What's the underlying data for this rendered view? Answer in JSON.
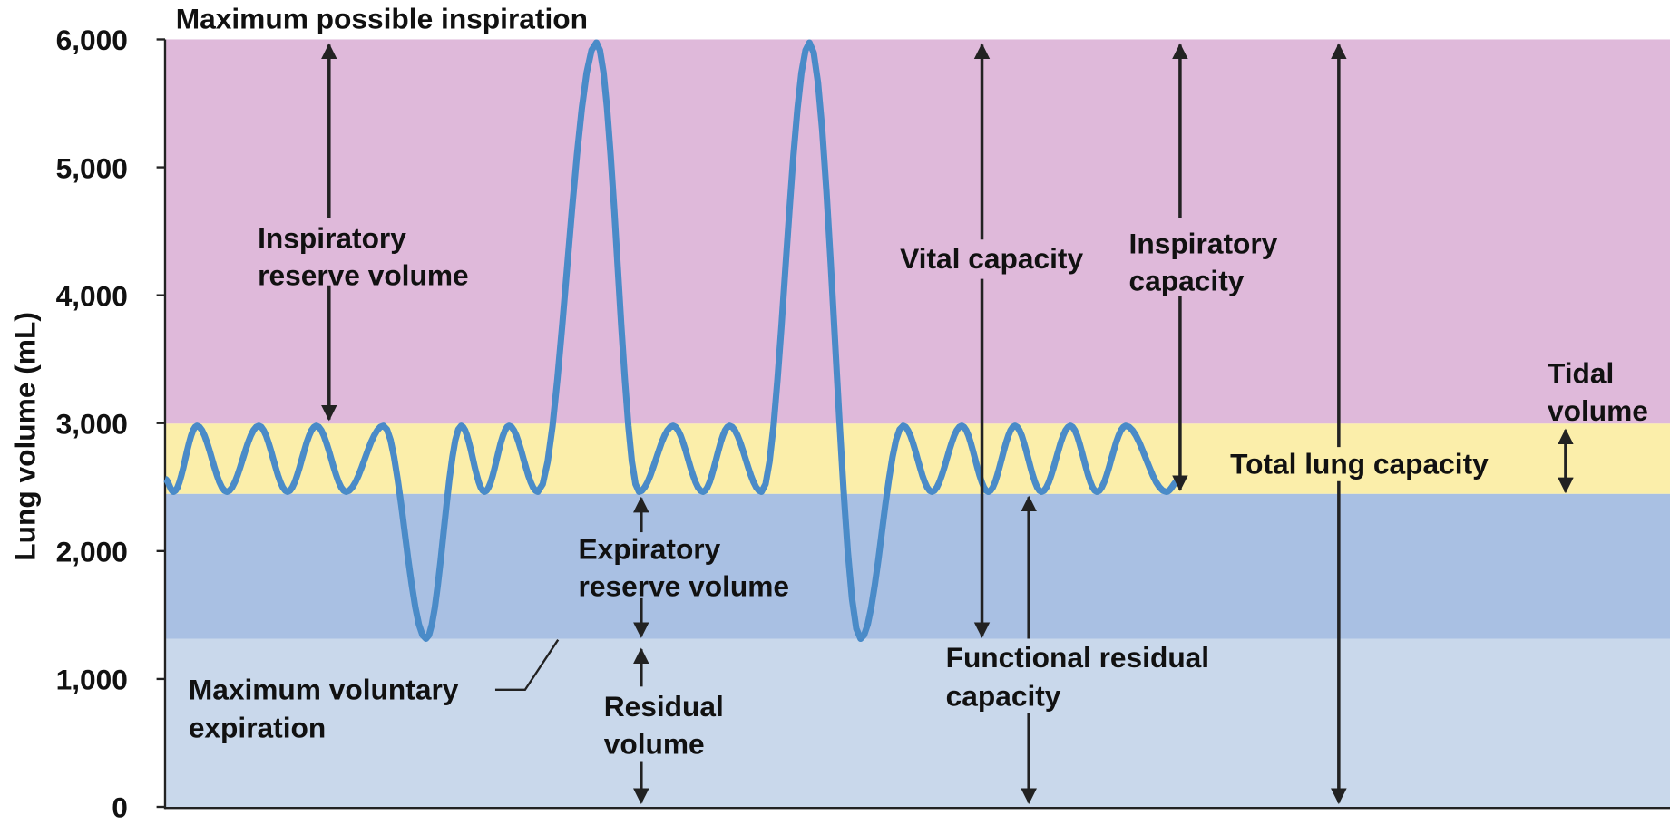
{
  "title": "Maximum possible inspiration",
  "y_axis": {
    "label": "Lung volume (mL)",
    "ticks": [
      {
        "value": 0,
        "label": "0"
      },
      {
        "value": 1000,
        "label": "1,000"
      },
      {
        "value": 2000,
        "label": "2,000"
      },
      {
        "value": 3000,
        "label": "3,000"
      },
      {
        "value": 4000,
        "label": "4,000"
      },
      {
        "value": 5000,
        "label": "5,000"
      },
      {
        "value": 6000,
        "label": "6,000"
      }
    ],
    "lim": [
      0,
      6000
    ]
  },
  "labels": {
    "inspiratory_reserve_volume": [
      "Inspiratory",
      "reserve volume"
    ],
    "vital_capacity": [
      "Vital capacity"
    ],
    "inspiratory_capacity": [
      "Inspiratory",
      "capacity"
    ],
    "tidal_volume": [
      "Tidal",
      "volume"
    ],
    "total_lung_capacity": [
      "Total lung capacity"
    ],
    "expiratory_reserve_volume": [
      "Expiratory",
      "reserve volume"
    ],
    "maximum_voluntary_expiration": [
      "Maximum voluntary",
      "expiration"
    ],
    "residual_volume": [
      "Residual",
      "volume"
    ],
    "functional_residual_capacity": [
      "Functional residual",
      "capacity"
    ]
  }
}
